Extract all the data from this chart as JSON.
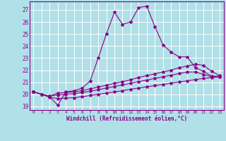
{
  "xlabel": "Windchill (Refroidissement éolien,°C)",
  "background_color": "#b0e0e8",
  "grid_color": "#ffffff",
  "line_color": "#880088",
  "xlim": [
    -0.5,
    23.5
  ],
  "ylim": [
    18.7,
    27.7
  ],
  "yticks": [
    19,
    20,
    21,
    22,
    23,
    24,
    25,
    26,
    27
  ],
  "xticks": [
    0,
    1,
    2,
    3,
    4,
    5,
    6,
    7,
    8,
    9,
    10,
    11,
    12,
    13,
    14,
    15,
    16,
    17,
    18,
    19,
    20,
    21,
    22,
    23
  ],
  "s1_x": [
    0,
    1,
    2,
    3,
    4,
    5,
    6,
    7,
    8,
    9,
    10,
    11,
    12,
    13,
    14,
    15,
    16,
    17,
    18,
    19,
    20,
    21,
    22,
    23
  ],
  "s1_y": [
    20.2,
    20.0,
    19.8,
    19.1,
    20.2,
    20.3,
    20.5,
    21.1,
    23.0,
    25.0,
    26.8,
    25.8,
    26.0,
    27.2,
    27.3,
    25.6,
    24.1,
    23.5,
    23.1,
    23.1,
    22.2,
    21.9,
    21.5,
    21.5
  ],
  "s2_x": [
    0,
    1,
    2,
    3,
    4,
    5,
    6,
    7,
    8,
    9,
    10,
    11,
    12,
    13,
    14,
    15,
    16,
    17,
    18,
    19,
    20,
    21,
    22,
    23
  ],
  "s2_y": [
    20.2,
    20.0,
    19.85,
    20.1,
    20.15,
    20.2,
    20.3,
    20.45,
    20.6,
    20.75,
    20.9,
    21.05,
    21.2,
    21.4,
    21.55,
    21.7,
    21.85,
    22.0,
    22.2,
    22.35,
    22.5,
    22.4,
    21.9,
    21.55
  ],
  "s3_x": [
    0,
    1,
    2,
    3,
    4,
    5,
    6,
    7,
    8,
    9,
    10,
    11,
    12,
    13,
    14,
    15,
    16,
    17,
    18,
    19,
    20,
    21,
    22,
    23
  ],
  "s3_y": [
    20.2,
    20.0,
    19.85,
    19.95,
    20.0,
    20.05,
    20.15,
    20.25,
    20.38,
    20.52,
    20.65,
    20.78,
    20.92,
    21.05,
    21.18,
    21.32,
    21.45,
    21.58,
    21.72,
    21.85,
    21.85,
    21.65,
    21.45,
    21.45
  ],
  "s4_x": [
    0,
    1,
    2,
    3,
    4,
    5,
    6,
    7,
    8,
    9,
    10,
    11,
    12,
    13,
    14,
    15,
    16,
    17,
    18,
    19,
    20,
    21,
    22,
    23
  ],
  "s4_y": [
    20.2,
    20.0,
    19.75,
    19.65,
    19.68,
    19.72,
    19.8,
    19.9,
    20.0,
    20.1,
    20.2,
    20.3,
    20.42,
    20.52,
    20.62,
    20.72,
    20.82,
    20.92,
    21.02,
    21.12,
    21.22,
    21.32,
    21.38,
    21.45
  ]
}
